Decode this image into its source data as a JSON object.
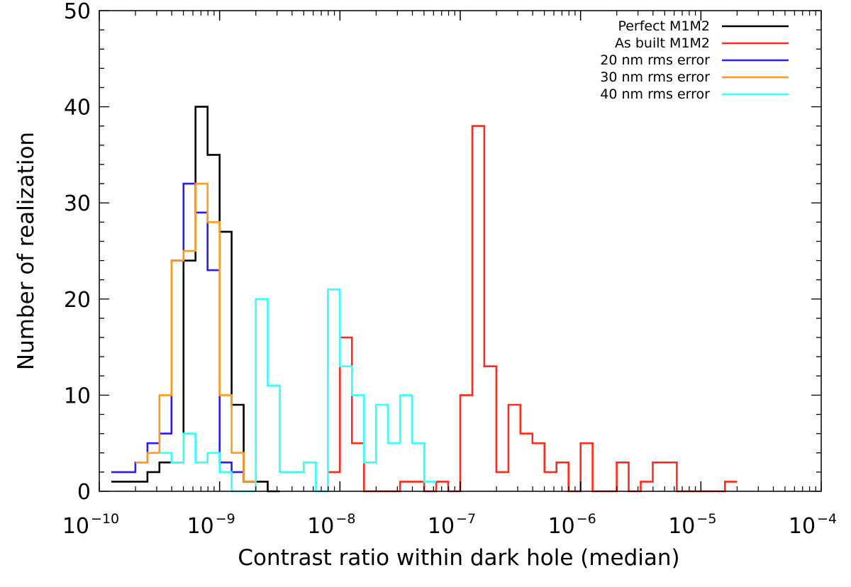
{
  "chart_data": {
    "type": "histogram",
    "title": "",
    "xlabel": "Contrast ratio within dark hole  (median)",
    "ylabel": "Number of realization",
    "x_scale": "log",
    "xlim": [
      1e-10,
      0.0001
    ],
    "ylim": [
      0,
      50
    ],
    "x_ticks": [
      {
        "base": "10",
        "exp": "−10"
      },
      {
        "base": "10",
        "exp": "−9"
      },
      {
        "base": "10",
        "exp": "−8"
      },
      {
        "base": "10",
        "exp": "−7"
      },
      {
        "base": "10",
        "exp": "−6"
      },
      {
        "base": "10",
        "exp": "−5"
      },
      {
        "base": "10",
        "exp": "−4"
      }
    ],
    "y_ticks": [
      "0",
      "10",
      "20",
      "30",
      "40",
      "50"
    ],
    "bin_width_log10": 0.1,
    "legend_position": "top-right",
    "grid": false,
    "series": [
      {
        "name": "Perfect M1M2",
        "color": "#000000",
        "bin_start_log10": -9.9,
        "counts": [
          1,
          1,
          1,
          2,
          3,
          3,
          24,
          40,
          35,
          27,
          9,
          1,
          1,
          0
        ]
      },
      {
        "name": "As built M1M2",
        "color": "#ff2a1a",
        "bin_start_log10": -8.1,
        "counts": [
          2,
          16,
          5,
          0,
          0,
          0,
          1,
          1,
          0,
          1,
          0,
          10,
          38,
          13,
          2,
          9,
          6,
          5,
          2,
          3,
          0,
          5,
          0,
          0,
          3,
          0,
          1,
          3,
          3,
          0,
          0,
          0,
          0,
          1
        ]
      },
      {
        "name": "20 nm rms error",
        "color": "#2a1aff",
        "bin_start_log10": -9.9,
        "counts": [
          2,
          2,
          3,
          5,
          6,
          24,
          32,
          29,
          23,
          3,
          2,
          1
        ]
      },
      {
        "name": "30 nm rms error",
        "color": "#ff9a1a",
        "bin_start_log10": -9.7,
        "counts": [
          3,
          4,
          10,
          24,
          25,
          32,
          28,
          10,
          4,
          1
        ]
      },
      {
        "name": "40 nm rms error",
        "color": "#33ffff",
        "bin_start_log10": -9.5,
        "counts": [
          4,
          3,
          6,
          3,
          4,
          2,
          0,
          0,
          20,
          11,
          2,
          2,
          3,
          0,
          21,
          13,
          10,
          3,
          9,
          5,
          10,
          5,
          1
        ]
      }
    ]
  }
}
